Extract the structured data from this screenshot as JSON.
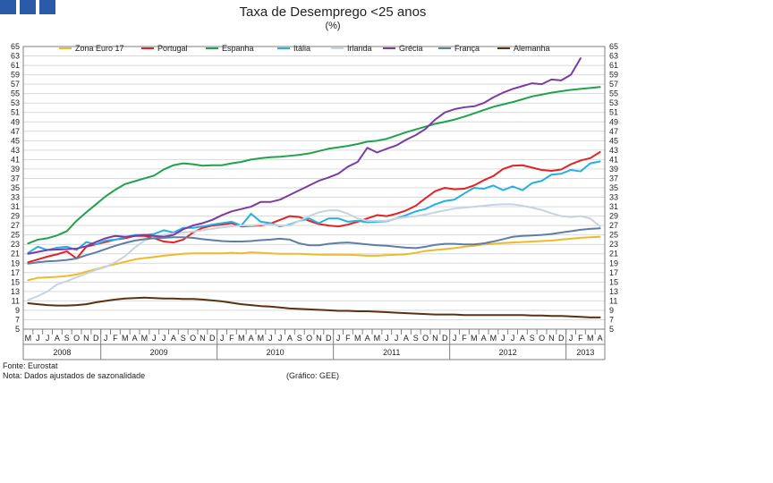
{
  "chart_data": {
    "type": "line",
    "title": "Taxa de Desemprego <25 anos",
    "subtitle": "(%)",
    "source": "Fonte: Eurostat",
    "note": "Nota: Dados ajustados de sazonalidade",
    "credit": "(Gráfico: GEE)",
    "ylim": [
      5,
      65
    ],
    "ytick_step": 2,
    "grid": true,
    "legend_position": "top",
    "months": [
      "M",
      "J",
      "J",
      "A",
      "S",
      "O",
      "N",
      "D",
      "J",
      "F",
      "M",
      "A",
      "M",
      "J",
      "J",
      "A",
      "S",
      "O",
      "N",
      "D",
      "J",
      "F",
      "M",
      "A",
      "M",
      "J",
      "J",
      "A",
      "S",
      "O",
      "N",
      "D",
      "J",
      "F",
      "M",
      "A",
      "M",
      "J",
      "J",
      "A",
      "S",
      "O",
      "N",
      "D",
      "J",
      "F",
      "M",
      "A",
      "M",
      "J",
      "J",
      "A",
      "S",
      "O",
      "N",
      "D",
      "J",
      "F",
      "M",
      "A"
    ],
    "years": [
      {
        "label": "2008",
        "months": 8
      },
      {
        "label": "2009",
        "months": 12
      },
      {
        "label": "2010",
        "months": 12
      },
      {
        "label": "2011",
        "months": 12
      },
      {
        "label": "2012",
        "months": 12
      },
      {
        "label": "2013",
        "months": 4
      }
    ],
    "series": [
      {
        "name": "Zona Euro 17",
        "color": "#f0b92b",
        "values": [
          15.4,
          15.9,
          16.0,
          16.1,
          16.3,
          16.6,
          17.2,
          17.7,
          18.3,
          18.8,
          19.3,
          19.8,
          20.1,
          20.3,
          20.6,
          20.8,
          21.0,
          21.1,
          21.1,
          21.1,
          21.1,
          21.2,
          21.1,
          21.3,
          21.2,
          21.1,
          21.0,
          21.0,
          21.0,
          20.9,
          20.8,
          20.8,
          20.8,
          20.8,
          20.7,
          20.6,
          20.6,
          20.7,
          20.8,
          20.9,
          21.2,
          21.6,
          21.8,
          22.0,
          22.2,
          22.5,
          22.7,
          23.0,
          23.1,
          23.3,
          23.4,
          23.5,
          23.6,
          23.7,
          23.8,
          24.0,
          24.2,
          24.4,
          24.5,
          24.6
        ]
      },
      {
        "name": "Portugal",
        "color": "#e52222",
        "values": [
          19.2,
          19.8,
          20.4,
          20.9,
          21.5,
          20.0,
          22.5,
          23.0,
          23.5,
          24.0,
          24.3,
          24.8,
          24.8,
          24.3,
          23.6,
          23.4,
          24.0,
          25.5,
          26.5,
          27.0,
          27.2,
          27.5,
          26.8,
          26.9,
          27.0,
          27.4,
          28.2,
          29.0,
          28.8,
          28.0,
          27.3,
          27.0,
          26.8,
          27.2,
          27.8,
          28.5,
          29.2,
          29.0,
          29.5,
          30.2,
          31.2,
          32.8,
          34.3,
          35.0,
          34.7,
          34.8,
          35.5,
          36.6,
          37.5,
          39.0,
          39.7,
          39.8,
          39.3,
          38.8,
          38.6,
          38.9,
          40.0,
          40.8,
          41.3,
          42.6
        ]
      },
      {
        "name": "Espanha",
        "color": "#1fa34a",
        "values": [
          23.2,
          24.0,
          24.3,
          24.9,
          25.8,
          28.0,
          29.8,
          31.5,
          33.2,
          34.6,
          35.8,
          36.4,
          37.0,
          37.6,
          38.9,
          39.8,
          40.2,
          40.0,
          39.7,
          39.8,
          39.8,
          40.2,
          40.5,
          41.0,
          41.3,
          41.5,
          41.6,
          41.8,
          42.0,
          42.3,
          42.8,
          43.3,
          43.6,
          43.9,
          44.3,
          44.8,
          45.0,
          45.4,
          46.1,
          46.8,
          47.4,
          48.0,
          48.6,
          49.0,
          49.5,
          50.1,
          50.8,
          51.5,
          52.2,
          52.7,
          53.2,
          53.8,
          54.4,
          54.8,
          55.2,
          55.5,
          55.8,
          56.0,
          56.2,
          56.4
        ]
      },
      {
        "name": "Itália",
        "color": "#24b0e0",
        "values": [
          21.2,
          22.5,
          21.8,
          22.3,
          22.5,
          21.8,
          23.5,
          23.0,
          23.8,
          24.0,
          24.5,
          25.0,
          25.0,
          25.2,
          26.0,
          25.5,
          26.5,
          26.5,
          26.8,
          27.2,
          27.5,
          27.8,
          27.0,
          29.5,
          27.8,
          27.5,
          26.8,
          27.2,
          28.0,
          28.5,
          27.5,
          28.5,
          28.5,
          27.8,
          28.0,
          27.7,
          27.8,
          27.9,
          28.5,
          29.2,
          30.0,
          30.5,
          31.5,
          32.2,
          32.5,
          33.8,
          35.0,
          34.8,
          35.5,
          34.5,
          35.3,
          34.5,
          36.0,
          36.5,
          37.8,
          38.0,
          38.8,
          38.5,
          40.2,
          40.6
        ]
      },
      {
        "name": "Irlanda",
        "color": "#c7d3e0",
        "values": [
          11.2,
          12.0,
          13.0,
          14.5,
          15.2,
          16.0,
          16.8,
          17.6,
          18.2,
          19.2,
          20.5,
          22.3,
          23.8,
          24.5,
          25.0,
          25.3,
          25.5,
          25.7,
          26.0,
          26.3,
          26.6,
          26.8,
          27.0,
          27.0,
          27.2,
          27.2,
          27.0,
          27.0,
          28.0,
          29.0,
          29.8,
          30.2,
          30.2,
          29.5,
          28.5,
          28.0,
          28.0,
          28.0,
          28.5,
          28.8,
          29.0,
          29.3,
          29.8,
          30.2,
          30.6,
          30.8,
          31.0,
          31.2,
          31.4,
          31.5,
          31.5,
          31.2,
          30.8,
          30.3,
          29.6,
          29.0,
          28.8,
          29.0,
          28.5,
          26.8
        ]
      },
      {
        "name": "Grécia",
        "color": "#7b3ba1",
        "values": [
          21.0,
          21.4,
          21.8,
          21.9,
          22.0,
          22.1,
          22.6,
          23.5,
          24.3,
          24.8,
          24.6,
          24.8,
          25.0,
          24.8,
          24.6,
          25.0,
          26.2,
          27.0,
          27.5,
          28.2,
          29.2,
          30.0,
          30.5,
          31.0,
          32.0,
          32.0,
          32.5,
          33.5,
          34.5,
          35.5,
          36.5,
          37.2,
          38.0,
          39.5,
          40.5,
          43.5,
          42.5,
          43.3,
          44.0,
          45.2,
          46.2,
          47.5,
          49.5,
          51.0,
          51.7,
          52.1,
          52.3,
          53.0,
          54.2,
          55.2,
          56.0,
          56.6,
          57.2,
          57.0,
          58.0,
          57.8,
          59.0,
          62.5,
          null,
          null
        ]
      },
      {
        "name": "França",
        "color": "#5b7fa6",
        "values": [
          18.9,
          19.2,
          19.4,
          19.5,
          19.7,
          20.0,
          20.7,
          21.3,
          22.0,
          22.7,
          23.3,
          23.8,
          24.1,
          24.3,
          24.4,
          24.5,
          24.5,
          24.4,
          24.1,
          23.9,
          23.7,
          23.6,
          23.6,
          23.7,
          23.9,
          24.0,
          24.2,
          24.0,
          23.2,
          22.8,
          22.8,
          23.1,
          23.3,
          23.4,
          23.2,
          23.0,
          22.8,
          22.7,
          22.5,
          22.3,
          22.2,
          22.5,
          22.9,
          23.1,
          23.1,
          23.0,
          23.0,
          23.2,
          23.6,
          24.1,
          24.6,
          24.8,
          24.9,
          25.0,
          25.2,
          25.5,
          25.8,
          26.1,
          26.3,
          26.4
        ]
      },
      {
        "name": "Alemanha",
        "color": "#5a3210",
        "values": [
          10.5,
          10.3,
          10.1,
          10.0,
          10.0,
          10.1,
          10.3,
          10.7,
          11.0,
          11.3,
          11.5,
          11.6,
          11.7,
          11.6,
          11.5,
          11.5,
          11.4,
          11.4,
          11.3,
          11.1,
          10.9,
          10.6,
          10.3,
          10.1,
          9.9,
          9.8,
          9.6,
          9.4,
          9.3,
          9.2,
          9.1,
          9.0,
          8.9,
          8.9,
          8.8,
          8.8,
          8.7,
          8.6,
          8.5,
          8.4,
          8.3,
          8.2,
          8.1,
          8.1,
          8.1,
          8.0,
          8.0,
          8.0,
          8.0,
          8.0,
          8.0,
          8.0,
          7.9,
          7.9,
          7.8,
          7.8,
          7.7,
          7.6,
          7.5,
          7.5
        ]
      }
    ]
  }
}
